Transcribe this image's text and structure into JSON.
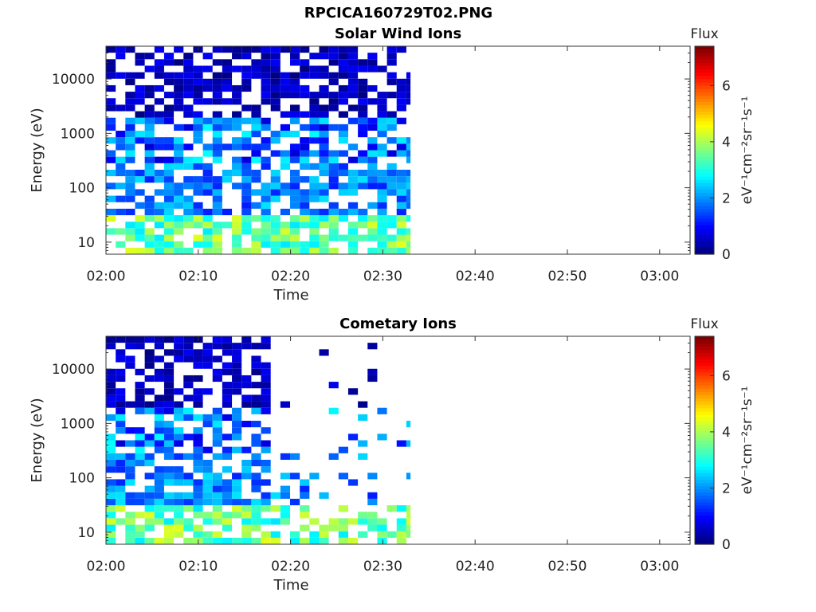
{
  "figure_title": "RPCICA160729T02.PNG",
  "colors": {
    "colormap": [
      "#00007f",
      "#0000ff",
      "#007fff",
      "#00ffff",
      "#7fff7f",
      "#ffff00",
      "#ff7f00",
      "#ff0000",
      "#7f0000"
    ]
  },
  "chart_data": [
    {
      "type": "heatmap",
      "title": "Solar Wind Ions",
      "xlabel": "Time",
      "ylabel": "Energy (eV)",
      "xticks": [
        "02:00",
        "02:10",
        "02:20",
        "02:30",
        "02:40",
        "02:50",
        "03:00"
      ],
      "xlim_minutes": [
        0,
        63.3
      ],
      "yscale": "log",
      "ylim": [
        6,
        40000
      ],
      "yticks": [
        10,
        100,
        1000,
        10000
      ],
      "ytick_labels": [
        "10",
        "100",
        "1000",
        "10000"
      ],
      "colorbar": {
        "label": "Flux",
        "unit_label": "eV⁻¹cm⁻²sr⁻¹s⁻¹",
        "range": [
          0,
          7.4
        ],
        "ticks": [
          0,
          2,
          4,
          6
        ]
      },
      "data_extent_minutes": [
        0,
        33
      ],
      "seed": 7,
      "sparse_from_minute": 33
    },
    {
      "type": "heatmap",
      "title": "Cometary Ions",
      "xlabel": "Time",
      "ylabel": "Energy (eV)",
      "xticks": [
        "02:00",
        "02:10",
        "02:20",
        "02:30",
        "02:40",
        "02:50",
        "03:00"
      ],
      "xlim_minutes": [
        0,
        63.3
      ],
      "yscale": "log",
      "ylim": [
        6,
        40000
      ],
      "yticks": [
        10,
        100,
        1000,
        10000
      ],
      "ytick_labels": [
        "10",
        "100",
        "1000",
        "10000"
      ],
      "colorbar": {
        "label": "Flux",
        "unit_label": "eV⁻¹cm⁻²sr⁻¹s⁻¹",
        "range": [
          0,
          7.4
        ],
        "ticks": [
          0,
          2,
          4,
          6
        ]
      },
      "data_extent_minutes": [
        0,
        33
      ],
      "seed": 13,
      "sparse_from_minute": 17
    }
  ]
}
